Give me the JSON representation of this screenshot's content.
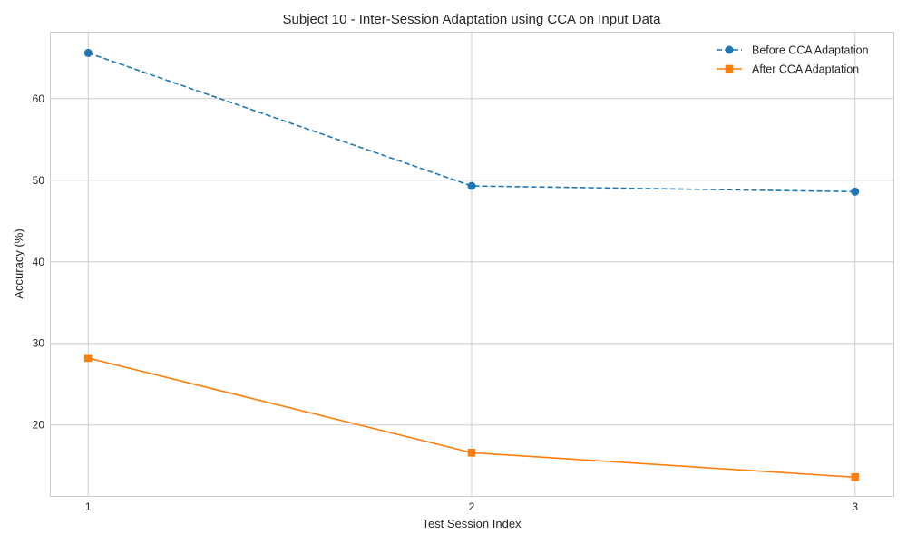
{
  "chart_data": {
    "type": "line",
    "title": "Subject 10 - Inter-Session Adaptation using CCA on Input Data",
    "xlabel": "Test Session Index",
    "ylabel": "Accuracy (%)",
    "x": [
      1,
      2,
      3
    ],
    "x_ticks": [
      "1",
      "2",
      "3"
    ],
    "y_ticks": [
      20,
      30,
      40,
      50,
      60
    ],
    "xlim": [
      0.9,
      3.1
    ],
    "ylim": [
      11.3,
      68.2
    ],
    "grid": true,
    "legend_position": "top-right",
    "series": [
      {
        "name": "Before CCA Adaptation",
        "values": [
          65.6,
          49.3,
          48.6
        ],
        "color": "#1f77b4",
        "line_style": "dashed",
        "marker": "circle"
      },
      {
        "name": "After CCA Adaptation",
        "values": [
          28.2,
          16.6,
          13.6
        ],
        "color": "#ff7f0e",
        "line_style": "solid",
        "marker": "square"
      }
    ]
  }
}
